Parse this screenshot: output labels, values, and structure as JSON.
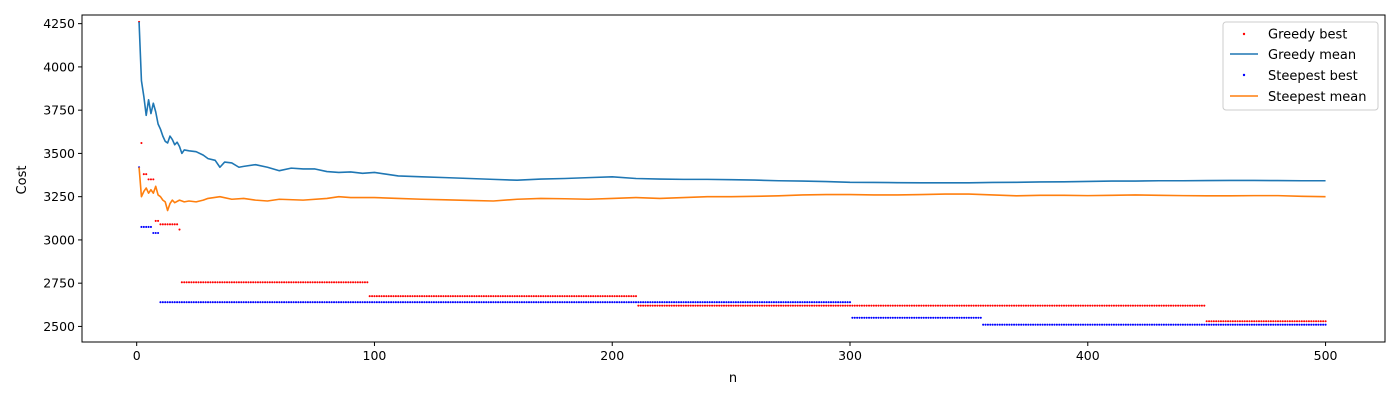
{
  "chart_data": {
    "type": "line",
    "title": "",
    "xlabel": "n",
    "ylabel": "Cost",
    "xlim": [
      -23,
      525
    ],
    "ylim": [
      2410,
      4300
    ],
    "x_ticks": [
      0,
      100,
      200,
      300,
      400,
      500
    ],
    "y_ticks": [
      2500,
      2750,
      3000,
      3250,
      3500,
      3750,
      4000,
      4250
    ],
    "grid": false,
    "legend_position": "top-right",
    "series": [
      {
        "name": "Greedy best",
        "kind": "points",
        "color": "#ff0000",
        "segments": [
          {
            "x_start": 1,
            "x_end": 1,
            "value": 4260
          },
          {
            "x_start": 2,
            "x_end": 2,
            "value": 3560
          },
          {
            "x_start": 3,
            "x_end": 4,
            "value": 3380
          },
          {
            "x_start": 5,
            "x_end": 7,
            "value": 3350
          },
          {
            "x_start": 8,
            "x_end": 9,
            "value": 3110
          },
          {
            "x_start": 10,
            "x_end": 17,
            "value": 3090
          },
          {
            "x_start": 18,
            "x_end": 18,
            "value": 3060
          },
          {
            "x_start": 19,
            "x_end": 97,
            "value": 2755
          },
          {
            "x_start": 98,
            "x_end": 210,
            "value": 2675
          },
          {
            "x_start": 211,
            "x_end": 449,
            "value": 2620
          },
          {
            "x_start": 450,
            "x_end": 500,
            "value": 2530
          }
        ]
      },
      {
        "name": "Greedy mean",
        "kind": "line",
        "color": "#1f77b4",
        "x": [
          1,
          2,
          3,
          4,
          5,
          6,
          7,
          8,
          9,
          10,
          11,
          12,
          13,
          14,
          15,
          16,
          17,
          18,
          19,
          20,
          22,
          25,
          28,
          30,
          33,
          35,
          37,
          40,
          43,
          45,
          50,
          55,
          60,
          65,
          70,
          75,
          80,
          85,
          90,
          95,
          100,
          105,
          110,
          120,
          130,
          140,
          150,
          160,
          170,
          180,
          190,
          200,
          210,
          220,
          230,
          240,
          250,
          260,
          270,
          280,
          290,
          300,
          310,
          320,
          330,
          340,
          350,
          360,
          370,
          380,
          390,
          400,
          410,
          420,
          430,
          440,
          450,
          460,
          470,
          480,
          490,
          500
        ],
        "values": [
          4260,
          3920,
          3830,
          3720,
          3810,
          3730,
          3790,
          3740,
          3670,
          3640,
          3600,
          3570,
          3560,
          3600,
          3580,
          3550,
          3565,
          3540,
          3500,
          3520,
          3515,
          3510,
          3490,
          3470,
          3460,
          3420,
          3450,
          3445,
          3420,
          3425,
          3435,
          3420,
          3400,
          3415,
          3410,
          3410,
          3395,
          3390,
          3393,
          3385,
          3390,
          3380,
          3370,
          3365,
          3360,
          3355,
          3350,
          3345,
          3352,
          3355,
          3360,
          3365,
          3355,
          3352,
          3350,
          3350,
          3348,
          3346,
          3342,
          3340,
          3337,
          3333,
          3332,
          3331,
          3330,
          3330,
          3330,
          3332,
          3333,
          3335,
          3336,
          3338,
          3340,
          3340,
          3342,
          3342,
          3343,
          3344,
          3344,
          3343,
          3342,
          3342
        ]
      },
      {
        "name": "Steepest best",
        "kind": "points",
        "color": "#0000ff",
        "segments": [
          {
            "x_start": 1,
            "x_end": 1,
            "value": 3420
          },
          {
            "x_start": 2,
            "x_end": 6,
            "value": 3075
          },
          {
            "x_start": 7,
            "x_end": 9,
            "value": 3040
          },
          {
            "x_start": 10,
            "x_end": 300,
            "value": 2640
          },
          {
            "x_start": 301,
            "x_end": 355,
            "value": 2550
          },
          {
            "x_start": 356,
            "x_end": 500,
            "value": 2510
          }
        ]
      },
      {
        "name": "Steepest mean",
        "kind": "line",
        "color": "#ff7f0e",
        "x": [
          1,
          2,
          3,
          4,
          5,
          6,
          7,
          8,
          9,
          10,
          11,
          12,
          13,
          14,
          15,
          16,
          18,
          20,
          22,
          25,
          28,
          30,
          35,
          40,
          45,
          50,
          55,
          60,
          70,
          80,
          85,
          90,
          100,
          110,
          120,
          130,
          140,
          150,
          160,
          170,
          180,
          190,
          200,
          210,
          220,
          230,
          240,
          250,
          260,
          270,
          280,
          290,
          300,
          310,
          320,
          330,
          340,
          350,
          360,
          370,
          380,
          390,
          400,
          410,
          420,
          430,
          440,
          450,
          460,
          470,
          480,
          490,
          500
        ],
        "values": [
          3420,
          3250,
          3280,
          3300,
          3270,
          3290,
          3270,
          3310,
          3260,
          3250,
          3230,
          3220,
          3170,
          3210,
          3230,
          3215,
          3230,
          3220,
          3225,
          3220,
          3230,
          3240,
          3250,
          3235,
          3240,
          3230,
          3225,
          3235,
          3230,
          3240,
          3250,
          3245,
          3245,
          3240,
          3235,
          3232,
          3228,
          3225,
          3235,
          3240,
          3238,
          3235,
          3240,
          3245,
          3240,
          3245,
          3250,
          3250,
          3252,
          3255,
          3260,
          3262,
          3262,
          3260,
          3260,
          3262,
          3265,
          3265,
          3260,
          3255,
          3258,
          3258,
          3256,
          3258,
          3260,
          3258,
          3256,
          3255,
          3255,
          3256,
          3256,
          3252,
          3250
        ]
      }
    ]
  }
}
